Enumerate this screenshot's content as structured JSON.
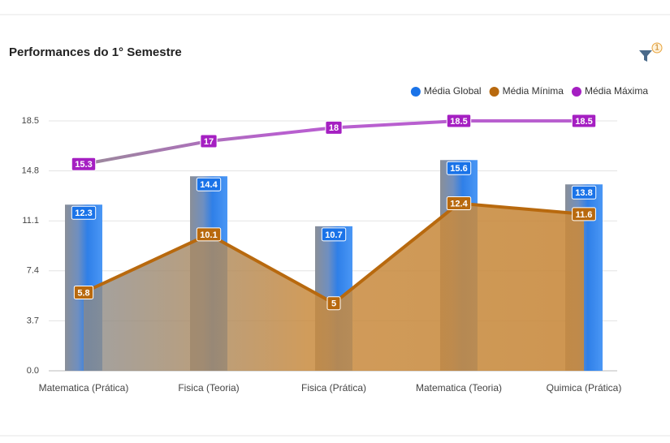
{
  "chart_data": {
    "type": "bar-area-line",
    "title": "Performances do 1° Semestre",
    "categories": [
      "Matematica (Prática)",
      "Fisica (Teoria)",
      "Fisica (Prática)",
      "Matematica (Teoria)",
      "Quimica (Prática)"
    ],
    "series": [
      {
        "name": "Média Global",
        "kind": "bar",
        "color": "#1a73e8",
        "values": [
          12.3,
          14.4,
          10.7,
          15.6,
          13.8
        ]
      },
      {
        "name": "Média Mínima",
        "kind": "area",
        "color": "#b8690e",
        "values": [
          5.8,
          10.1,
          5,
          12.4,
          11.6
        ]
      },
      {
        "name": "Média Máxima",
        "kind": "line",
        "color": "#a51fc2",
        "values": [
          15.3,
          17,
          18,
          18.5,
          18.5
        ]
      }
    ],
    "ylim": [
      0,
      18.5
    ],
    "yticks": [
      {
        "value": 0,
        "label": "0.0"
      },
      3.7,
      7.4,
      11.1,
      14.8,
      18.5
    ],
    "grid": true,
    "legend": "top-right"
  },
  "toolbar": {
    "filter_count": "1"
  }
}
